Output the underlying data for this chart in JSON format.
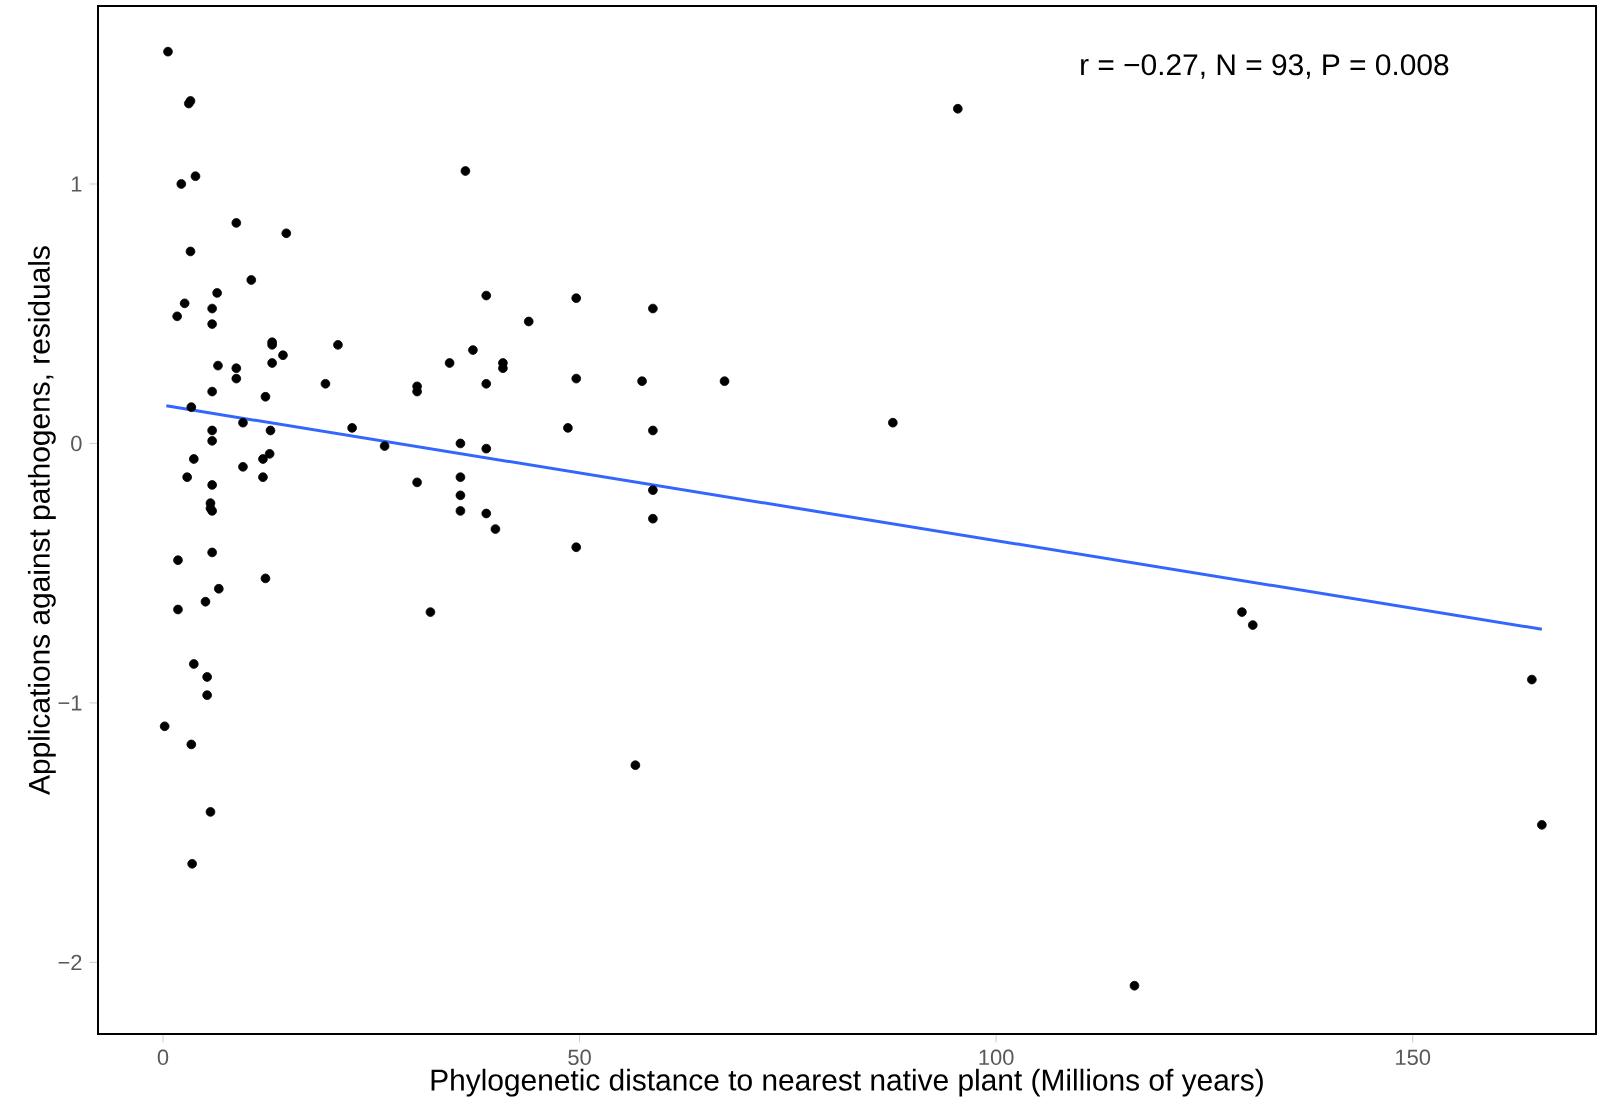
{
  "chart_data": {
    "type": "scatter",
    "xlabel": "Phylogenetic distance to nearest native plant (Millions of years)",
    "ylabel": "Applications against pathogens, residuals",
    "annotations": [
      "r = −0.27, N = 93, P = 0.008"
    ],
    "xlim": [
      -7.8,
      172
    ],
    "ylim": [
      -2.276,
      1.686
    ],
    "xticks": [
      0,
      50,
      100,
      150
    ],
    "yticks": [
      {
        "value": -2,
        "label": "−2"
      },
      {
        "value": -1,
        "label": "−1"
      },
      0,
      1
    ],
    "series": [
      {
        "color": "#000000",
        "x": [
          0.6,
          3.1,
          3.3,
          2.2,
          3.9,
          8.8,
          14.8,
          3.3,
          10.6,
          2.6,
          1.7,
          6.5,
          5.9,
          5.9,
          6.6,
          8.8,
          8.8,
          5.9,
          13.1,
          13.1,
          14.4,
          13.1,
          12.3,
          3.4,
          9.6,
          5.9,
          5.9,
          12.9,
          12.8,
          12.0,
          3.7,
          9.6,
          12.0,
          2.9,
          5.9,
          5.7,
          5.7,
          5.9,
          5.9,
          1.8,
          12.3,
          6.7,
          5.1,
          1.8,
          3.7,
          5.3,
          5.3,
          0.2,
          3.4,
          5.7,
          3.5,
          19.5,
          21.0,
          22.7,
          26.6,
          30.5,
          30.5,
          30.5,
          32.1,
          34.4,
          35.7,
          35.7,
          35.7,
          35.7,
          36.3,
          37.2,
          38.8,
          38.8,
          38.8,
          38.8,
          39.9,
          40.8,
          40.8,
          43.9,
          48.6,
          49.6,
          49.6,
          49.6,
          56.7,
          57.5,
          58.8,
          58.8,
          58.8,
          58.8,
          67.4,
          87.6,
          95.4,
          116.6,
          129.5,
          130.8,
          164.3,
          165.5
        ],
        "values": [
          1.51,
          1.31,
          1.32,
          1.0,
          1.03,
          0.85,
          0.81,
          0.74,
          0.63,
          0.54,
          0.49,
          0.58,
          0.52,
          0.46,
          0.3,
          0.29,
          0.25,
          0.2,
          0.39,
          0.38,
          0.34,
          0.31,
          0.18,
          0.14,
          0.08,
          0.05,
          0.01,
          0.05,
          -0.04,
          -0.06,
          -0.06,
          -0.09,
          -0.13,
          -0.13,
          -0.16,
          -0.23,
          -0.25,
          -0.26,
          -0.42,
          -0.45,
          -0.52,
          -0.56,
          -0.61,
          -0.64,
          -0.85,
          -0.9,
          -0.97,
          -1.09,
          -1.16,
          -1.42,
          -1.62,
          0.23,
          0.38,
          0.06,
          -0.01,
          0.22,
          0.2,
          -0.15,
          -0.65,
          0.31,
          0.0,
          -0.13,
          -0.2,
          -0.26,
          1.05,
          0.36,
          0.57,
          0.23,
          -0.02,
          -0.27,
          -0.33,
          0.31,
          0.29,
          0.47,
          0.06,
          0.56,
          0.25,
          -0.4,
          -1.24,
          0.24,
          0.52,
          0.05,
          -0.18,
          -0.29,
          0.24,
          0.08,
          1.29,
          -2.09,
          -0.65,
          -0.7,
          -0.91,
          -1.47
        ]
      },
      {
        "type": "line",
        "color": "#3366ff",
        "x": [
          0.4,
          165.5
        ],
        "values": [
          0.145,
          -0.716
        ]
      }
    ]
  }
}
